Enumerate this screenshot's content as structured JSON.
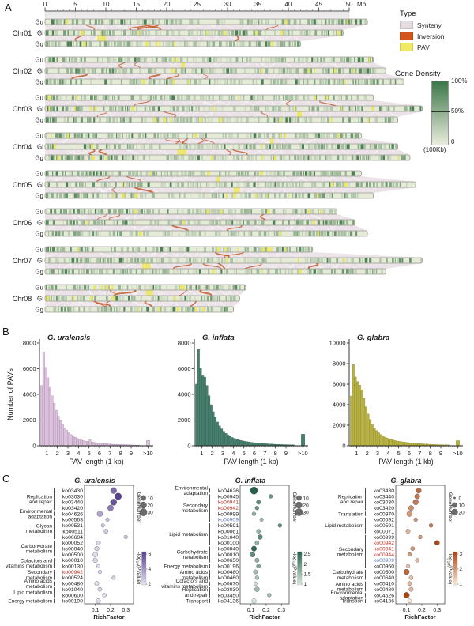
{
  "panel_labels": {
    "a": "A",
    "b": "B",
    "c": "C"
  },
  "chart_data": [
    {
      "type": "synteny-map",
      "ruler": {
        "ticks": [
          "0",
          "5",
          "10",
          "15",
          "20",
          "25",
          "30",
          "35",
          "40",
          "45",
          "50"
        ],
        "step_mb": 5,
        "unit": "Mb"
      },
      "track_labels": [
        "Gu",
        "Gi",
        "Gg"
      ],
      "chromosomes": [
        {
          "name": "Chr01",
          "lengths_mb": {
            "Gu": 53,
            "Gi": 49,
            "Gg": 42
          }
        },
        {
          "name": "Chr02",
          "lengths_mb": {
            "Gu": 54,
            "Gi": 56,
            "Gg": 59
          }
        },
        {
          "name": "Chr03",
          "lengths_mb": {
            "Gu": 54,
            "Gi": 62,
            "Gg": 58
          }
        },
        {
          "name": "Chr04",
          "lengths_mb": {
            "Gu": 52,
            "Gi": 58,
            "Gg": 60
          }
        },
        {
          "name": "Chr05",
          "lengths_mb": {
            "Gu": 52,
            "Gi": 61,
            "Gg": 54
          }
        },
        {
          "name": "Chr06",
          "lengths_mb": {
            "Gu": 48,
            "Gi": 51,
            "Gg": 53
          }
        },
        {
          "name": "Chr07",
          "lengths_mb": {
            "Gu": 44,
            "Gi": 62,
            "Gg": 56
          }
        },
        {
          "name": "Chr08",
          "lengths_mb": {
            "Gu": 33,
            "Gi": 32,
            "Gg": 31
          }
        }
      ],
      "colors": {
        "synteny": "#eae2e6",
        "inversion": "#c65a28",
        "pav": "#ece763",
        "bar_base": "#e6ead8",
        "density_high": "#417a4c",
        "legend_synteny": "#e4dce1",
        "legend_inversion": "#d4551b",
        "legend_pav": "#f0e967",
        "density_grad_high": "#3a7747",
        "density_grad_low": "#e9ecdb"
      },
      "type_legend": {
        "title": "Type",
        "items": [
          {
            "label": "Synteny"
          },
          {
            "label": "Inversion"
          },
          {
            "label": "PAV"
          }
        ]
      },
      "density_legend": {
        "title": "Gene Density",
        "top_label": "100%",
        "mid_label": "50%",
        "bottom_label": "0",
        "unit_label": "(100Kb)"
      }
    },
    {
      "type": "bar",
      "title": "G. uralensis",
      "ylabel": "Number of PAVs",
      "xlabel": "PAV length (1 kb)",
      "color": "#dcc1dd",
      "edge": "#a283a5",
      "ymax": 8000,
      "ystep": 2000,
      "xticks": [
        "1",
        "2",
        "3",
        "4",
        "5",
        "6",
        "7",
        "8",
        "9",
        ">10"
      ],
      "x_start": 0.5,
      "bin_width": 0.2,
      "values": [
        4700,
        7300,
        6100,
        5300,
        4600,
        3900,
        3300,
        2750,
        2300,
        1950,
        1650,
        1400,
        1200,
        1020,
        880,
        760,
        660,
        580,
        510,
        450,
        400,
        360,
        330,
        470,
        290,
        260,
        240,
        220,
        200,
        185,
        170,
        155,
        140,
        130,
        120,
        110,
        100,
        95,
        90,
        85,
        80,
        75,
        70,
        65,
        60,
        55,
        50
      ],
      "gt10_value": 420
    },
    {
      "type": "bar",
      "title": "G. inflata",
      "ylabel": "",
      "xlabel": "PAV length (1 kb)",
      "color": "#47806e",
      "edge": "#2e5c4e",
      "ymax": 8000,
      "ystep": 2000,
      "xticks": [
        "1",
        "2",
        "3",
        "4",
        "5",
        "6",
        "7",
        "8",
        "9",
        ">10"
      ],
      "x_start": 0.5,
      "bin_width": 0.2,
      "values": [
        4800,
        7500,
        6050,
        5450,
        5350,
        4700,
        3900,
        3200,
        2650,
        2200,
        1850,
        1550,
        1320,
        1130,
        970,
        840,
        740,
        650,
        580,
        520,
        470,
        420,
        380,
        350,
        320,
        295,
        270,
        250,
        230,
        215,
        200,
        185,
        170,
        160,
        150,
        140,
        130,
        120,
        110,
        105,
        100,
        95,
        90,
        85,
        80,
        75,
        70
      ],
      "gt10_value": 900
    },
    {
      "type": "bar",
      "title": "G. glabra",
      "ylabel": "",
      "xlabel": "PAV length (1 kb)",
      "color": "#b8b242",
      "edge": "#8a8630",
      "ymax": 10000,
      "ystep": 2000,
      "xticks": [
        "1",
        "2",
        "3",
        "4",
        "5",
        "6",
        "7",
        "8",
        "9",
        ">10"
      ],
      "x_start": 0.5,
      "bin_width": 0.2,
      "values": [
        4850,
        7900,
        6700,
        6250,
        5900,
        5450,
        4600,
        3800,
        3100,
        2550,
        2100,
        1750,
        1480,
        1270,
        1100,
        960,
        850,
        760,
        680,
        610,
        550,
        500,
        460,
        425,
        390,
        360,
        335,
        310,
        290,
        270,
        250,
        235,
        220,
        205,
        190,
        175,
        165,
        150,
        140,
        130,
        120,
        115,
        108,
        100,
        95,
        90,
        85
      ],
      "gt10_value": 500
    },
    {
      "type": "scatter",
      "title": "G. uralensis",
      "xlabel": "RichFactor",
      "xticks": [
        "0.1",
        "0.2",
        "0.3"
      ],
      "gene_legend": {
        "title": "GeneNumber",
        "values": [
          "10",
          "20",
          "30"
        ]
      },
      "pval_legend": {
        "title": "-log10(Pvalue)",
        "labels": [
          "6",
          "4",
          "2"
        ],
        "high": "#584093",
        "low": "#e6e2f2",
        "pmin": 2,
        "pmax": 6
      },
      "label_colors": {
        "default": "#1c1c1c",
        "red": "#c23527",
        "blue": "#5b78b8"
      },
      "groups": [
        {
          "lines": [
            "Replication",
            "and repair"
          ],
          "count": 4
        },
        {
          "lines": [
            "Environmental",
            "adaptation"
          ],
          "count": 1
        },
        {
          "lines": [
            "Glycan",
            "metabolism"
          ],
          "count": 4
        },
        {
          "lines": [
            "Carbohydrate",
            "metabolism"
          ],
          "count": 3
        },
        {
          "lines": [
            "Cofactors and",
            "vitamins metabolism"
          ],
          "count": 2
        },
        {
          "lines": [
            "Secondary",
            "metabolism"
          ],
          "count": 2
        },
        {
          "lines": [
            "Amino acids",
            "metabolism"
          ],
          "count": 1
        },
        {
          "lines": [
            "Lipid metabolism"
          ],
          "count": 2
        },
        {
          "lines": [
            "Energy metabolism"
          ],
          "count": 1
        }
      ],
      "rows": [
        {
          "ko": "ko03430",
          "rf": 0.22,
          "gene": 18,
          "p": 5,
          "color": "default"
        },
        {
          "ko": "ko03030",
          "rf": 0.25,
          "gene": 24,
          "p": 6,
          "color": "default"
        },
        {
          "ko": "ko03440",
          "rf": 0.22,
          "gene": 20,
          "p": 5.5,
          "color": "default"
        },
        {
          "ko": "ko03420",
          "rf": 0.2,
          "gene": 16,
          "p": 4.5,
          "color": "default"
        },
        {
          "ko": "ko04626",
          "rf": 0.13,
          "gene": 14,
          "p": 3.5,
          "color": "default"
        },
        {
          "ko": "ko00563",
          "rf": 0.18,
          "gene": 3,
          "p": 2.8,
          "color": "default"
        },
        {
          "ko": "ko00531",
          "rf": 0.15,
          "gene": 3,
          "p": 2.6,
          "color": "default"
        },
        {
          "ko": "ko00511",
          "rf": 0.17,
          "gene": 5,
          "p": 2.6,
          "color": "default"
        },
        {
          "ko": "ko00604",
          "rf": 0.3,
          "gene": 3,
          "p": 2.8,
          "color": "default"
        },
        {
          "ko": "ko00052",
          "rf": 0.12,
          "gene": 6,
          "p": 2.4,
          "color": "default"
        },
        {
          "ko": "ko00040",
          "rf": 0.11,
          "gene": 7,
          "p": 2.4,
          "color": "default"
        },
        {
          "ko": "ko00500",
          "rf": 0.1,
          "gene": 9,
          "p": 2.2,
          "color": "default"
        },
        {
          "ko": "ko00010",
          "rf": 0.1,
          "gene": 8,
          "p": 2.2,
          "color": "default"
        },
        {
          "ko": "ko00130",
          "rf": 0.12,
          "gene": 3,
          "p": 2.1,
          "color": "default"
        },
        {
          "ko": "ko00942",
          "rf": 0.13,
          "gene": 3,
          "p": 2.2,
          "color": "red"
        },
        {
          "ko": "ko00524",
          "rf": 0.22,
          "gene": 3,
          "p": 2.5,
          "color": "default"
        },
        {
          "ko": "ko00480",
          "rf": 0.11,
          "gene": 6,
          "p": 2.1,
          "color": "default"
        },
        {
          "ko": "ko01040",
          "rf": 0.13,
          "gene": 5,
          "p": 2.4,
          "color": "default"
        },
        {
          "ko": "ko00600",
          "rf": 0.16,
          "gene": 4,
          "p": 2.2,
          "color": "default"
        },
        {
          "ko": "ko00190",
          "rf": 0.12,
          "gene": 7,
          "p": 2.1,
          "color": "default"
        }
      ]
    },
    {
      "type": "scatter",
      "title": "G. inflata",
      "xlabel": "RichFactor",
      "xticks": [
        "0.1",
        "0.2",
        "0.3"
      ],
      "gene_legend": {
        "title": "GeneNumber",
        "values": [
          "10",
          "20",
          "30"
        ]
      },
      "pval_legend": {
        "title": "-log10(Pvalue)",
        "labels": [
          "2.5",
          "2",
          "1.5",
          "1"
        ],
        "high": "#22604a",
        "low": "#dcebdf",
        "pmin": 1,
        "pmax": 2.5
      },
      "label_colors": {
        "default": "#1c1c1c",
        "red": "#c23527",
        "blue": "#5b78b8"
      },
      "groups": [
        {
          "lines": [
            "Environmental",
            "adaptation"
          ],
          "count": 1
        },
        {
          "lines": [
            "Secondary",
            "metabolism"
          ],
          "count": 5
        },
        {
          "lines": [
            "Lipid metabolism"
          ],
          "count": 4
        },
        {
          "lines": [
            "Carbohydrate",
            "metabolism"
          ],
          "count": 3
        },
        {
          "lines": [
            "Energy metabolism"
          ],
          "count": 1
        },
        {
          "lines": [
            "Amino acids",
            "metabolism"
          ],
          "count": 2
        },
        {
          "lines": [
            "Cofactors and",
            "vitamins metabolism"
          ],
          "count": 1
        },
        {
          "lines": [
            "Replication",
            "and repair"
          ],
          "count": 2
        },
        {
          "lines": [
            "Transport"
          ],
          "count": 1
        }
      ],
      "rows": [
        {
          "ko": "ko04626",
          "rf": 0.12,
          "gene": 30,
          "p": 2.5,
          "color": "default"
        },
        {
          "ko": "ko00945",
          "rf": 0.23,
          "gene": 4,
          "p": 1.9,
          "color": "default"
        },
        {
          "ko": "ko00941",
          "rf": 0.15,
          "gene": 6,
          "p": 2.0,
          "color": "red"
        },
        {
          "ko": "ko00942",
          "rf": 0.14,
          "gene": 4,
          "p": 1.9,
          "color": "red"
        },
        {
          "ko": "ko00999",
          "rf": 0.12,
          "gene": 4,
          "p": 1.6,
          "color": "default"
        },
        {
          "ko": "ko00909",
          "rf": 0.17,
          "gene": 3,
          "p": 1.5,
          "color": "blue"
        },
        {
          "ko": "ko00591",
          "rf": 0.29,
          "gene": 4,
          "p": 2.0,
          "color": "default"
        },
        {
          "ko": "ko00061",
          "rf": 0.15,
          "gene": 5,
          "p": 1.6,
          "color": "default"
        },
        {
          "ko": "ko01040",
          "rf": 0.16,
          "gene": 9,
          "p": 2.0,
          "color": "default"
        },
        {
          "ko": "ko00100",
          "rf": 0.14,
          "gene": 5,
          "p": 1.6,
          "color": "default"
        },
        {
          "ko": "ko00040",
          "rf": 0.12,
          "gene": 11,
          "p": 2.4,
          "color": "default"
        },
        {
          "ko": "ko00010",
          "rf": 0.11,
          "gene": 11,
          "p": 2.0,
          "color": "default"
        },
        {
          "ko": "ko00650",
          "rf": 0.14,
          "gene": 6,
          "p": 1.6,
          "color": "default"
        },
        {
          "ko": "ko00196",
          "rf": 0.15,
          "gene": 5,
          "p": 1.7,
          "color": "default"
        },
        {
          "ko": "ko00480",
          "rf": 0.13,
          "gene": 6,
          "p": 1.5,
          "color": "default"
        },
        {
          "ko": "ko00460",
          "rf": 0.14,
          "gene": 4,
          "p": 1.4,
          "color": "default"
        },
        {
          "ko": "ko00670",
          "rf": 0.13,
          "gene": 3,
          "p": 1.1,
          "color": "default"
        },
        {
          "ko": "ko03030",
          "rf": 0.14,
          "gene": 9,
          "p": 1.5,
          "color": "default"
        },
        {
          "ko": "ko03450",
          "rf": 0.22,
          "gene": 4,
          "p": 1.5,
          "color": "default"
        },
        {
          "ko": "ko04136",
          "rf": 0.12,
          "gene": 7,
          "p": 1.0,
          "color": "default"
        }
      ]
    },
    {
      "type": "scatter",
      "title": "G. glabra",
      "xlabel": "RichFactor",
      "xticks": [
        "0.1",
        "0.2",
        "0.3"
      ],
      "gene_legend": {
        "title": "GeneNumber",
        "values": [
          "0",
          "10",
          "20"
        ]
      },
      "pval_legend": {
        "title": "-log10(Pvalue)",
        "labels": [
          "3",
          "2",
          "1"
        ],
        "high": "#a84414",
        "low": "#fcebd9",
        "pmin": 1,
        "pmax": 3
      },
      "label_colors": {
        "default": "#1c1c1c",
        "red": "#c23527",
        "blue": "#5b78b8"
      },
      "groups": [
        {
          "lines": [
            "Replication",
            "and repair"
          ],
          "count": 4
        },
        {
          "lines": [
            "Translation"
          ],
          "count": 1
        },
        {
          "lines": [
            "Lipid metabolism"
          ],
          "count": 3
        },
        {
          "lines": [
            "Secondary",
            "metabolism"
          ],
          "count": 6
        },
        {
          "lines": [
            "Carbohydrate",
            "metabolism"
          ],
          "count": 2
        },
        {
          "lines": [
            "Amino acids",
            "metabolism"
          ],
          "count": 2
        },
        {
          "lines": [
            "Environmental",
            "adaptation"
          ],
          "count": 1
        },
        {
          "lines": [
            "Transport"
          ],
          "count": 1
        }
      ],
      "rows": [
        {
          "ko": "ko03430",
          "rf": 0.18,
          "gene": 11,
          "p": 2.5,
          "color": "default"
        },
        {
          "ko": "ko03440",
          "rf": 0.17,
          "gene": 11,
          "p": 2.4,
          "color": "default"
        },
        {
          "ko": "ko03030",
          "rf": 0.16,
          "gene": 13,
          "p": 2.4,
          "color": "default"
        },
        {
          "ko": "ko03420",
          "rf": 0.13,
          "gene": 11,
          "p": 2.1,
          "color": "default"
        },
        {
          "ko": "ko00970",
          "rf": 0.12,
          "gene": 13,
          "p": 2.0,
          "color": "default"
        },
        {
          "ko": "ko00592",
          "rf": 0.16,
          "gene": 4,
          "p": 2.0,
          "color": "default"
        },
        {
          "ko": "ko00591",
          "rf": 0.26,
          "gene": 4,
          "p": 2.4,
          "color": "default"
        },
        {
          "ko": "ko00071",
          "rf": 0.11,
          "gene": 6,
          "p": 1.6,
          "color": "default"
        },
        {
          "ko": "ko00999",
          "rf": 0.19,
          "gene": 4,
          "p": 2.0,
          "color": "default"
        },
        {
          "ko": "ko00942",
          "rf": 0.3,
          "gene": 9,
          "p": 3.0,
          "color": "red"
        },
        {
          "ko": "ko00941",
          "rf": 0.14,
          "gene": 5,
          "p": 2.0,
          "color": "red"
        },
        {
          "ko": "ko00944",
          "rf": 0.12,
          "gene": 4,
          "p": 2.0,
          "color": "red"
        },
        {
          "ko": "ko00909",
          "rf": 0.17,
          "gene": 4,
          "p": 1.6,
          "color": "blue"
        },
        {
          "ko": "ko00960",
          "rf": 0.11,
          "gene": 3,
          "p": 1.5,
          "color": "default"
        },
        {
          "ko": "ko00500",
          "rf": 0.1,
          "gene": 13,
          "p": 2.6,
          "color": "default"
        },
        {
          "ko": "ko00640",
          "rf": 0.13,
          "gene": 5,
          "p": 1.5,
          "color": "default"
        },
        {
          "ko": "ko00410",
          "rf": 0.12,
          "gene": 5,
          "p": 1.6,
          "color": "default"
        },
        {
          "ko": "ko00480",
          "rf": 0.13,
          "gene": 6,
          "p": 1.6,
          "color": "default"
        },
        {
          "ko": "ko04626",
          "rf": 0.1,
          "gene": 15,
          "p": 3.0,
          "color": "default"
        },
        {
          "ko": "ko04136",
          "rf": 0.12,
          "gene": 5,
          "p": 1.0,
          "color": "default"
        }
      ]
    }
  ]
}
